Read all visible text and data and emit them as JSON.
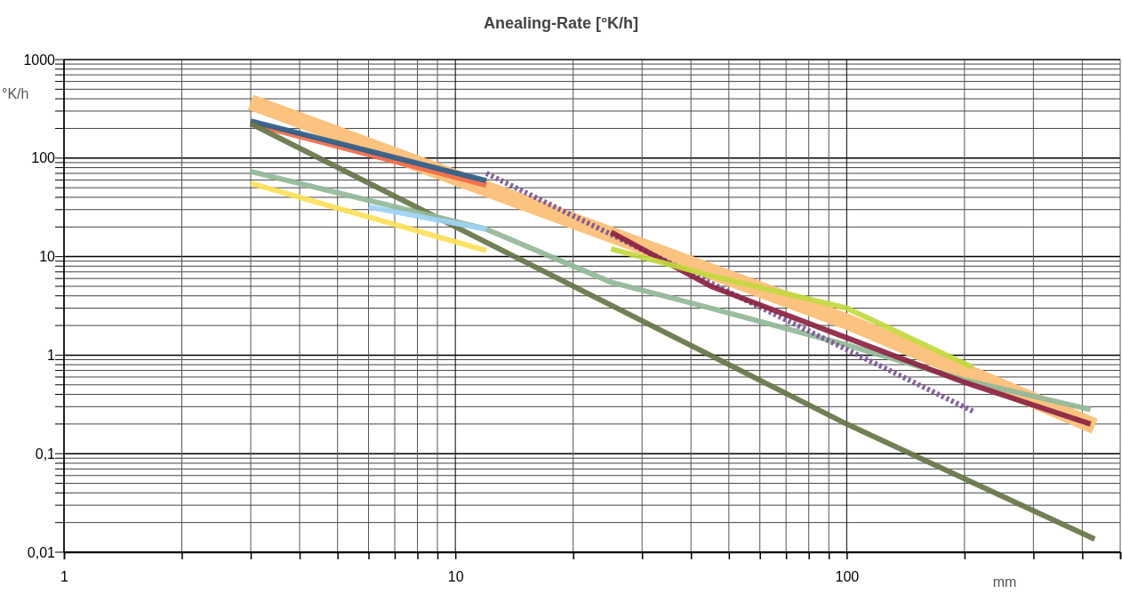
{
  "chart_data": {
    "type": "line",
    "title": "Anealing-Rate [°K/h]",
    "xlabel": "mm",
    "ylabel": "°K/h",
    "log": "xy",
    "grid": true,
    "xlim": [
      1,
      500
    ],
    "xticks": [
      1,
      {
        "value": 2,
        "label": null
      },
      {
        "value": 3,
        "label": null
      },
      {
        "value": 4,
        "label": null
      },
      {
        "value": 5,
        "label": null
      },
      {
        "value": 6,
        "label": null
      },
      {
        "value": 7,
        "label": null
      },
      {
        "value": 8,
        "label": null
      },
      {
        "value": 9,
        "label": null
      },
      10,
      {
        "value": 20,
        "label": null
      },
      {
        "value": 30,
        "label": null
      },
      {
        "value": 40,
        "label": null
      },
      {
        "value": 50,
        "label": null
      },
      {
        "value": 60,
        "label": null
      },
      {
        "value": 70,
        "label": null
      },
      {
        "value": 80,
        "label": null
      },
      {
        "value": 90,
        "label": null
      },
      100,
      {
        "value": 200,
        "label": null
      },
      {
        "value": 300,
        "label": null
      },
      {
        "value": 400,
        "label": null
      },
      {
        "value": 500,
        "label": null
      }
    ],
    "ylim": [
      0.01,
      1000
    ],
    "yticks": [
      {
        "value": 0.01,
        "label": "0,01"
      },
      {
        "value": 0.02,
        "label": null
      },
      {
        "value": 0.03,
        "label": null
      },
      {
        "value": 0.04,
        "label": null
      },
      {
        "value": 0.05,
        "label": null
      },
      {
        "value": 0.06,
        "label": null
      },
      {
        "value": 0.07,
        "label": null
      },
      {
        "value": 0.08,
        "label": null
      },
      {
        "value": 0.09,
        "label": null
      },
      {
        "value": 0.1,
        "label": "0,1"
      },
      {
        "value": 0.2,
        "label": null
      },
      {
        "value": 0.3,
        "label": null
      },
      {
        "value": 0.4,
        "label": null
      },
      {
        "value": 0.5,
        "label": null
      },
      {
        "value": 0.6,
        "label": null
      },
      {
        "value": 0.7,
        "label": null
      },
      {
        "value": 0.8,
        "label": null
      },
      {
        "value": 0.9,
        "label": null
      },
      1,
      {
        "value": 2,
        "label": null
      },
      {
        "value": 3,
        "label": null
      },
      {
        "value": 4,
        "label": null
      },
      {
        "value": 5,
        "label": null
      },
      {
        "value": 6,
        "label": null
      },
      {
        "value": 7,
        "label": null
      },
      {
        "value": 8,
        "label": null
      },
      {
        "value": 9,
        "label": null
      },
      10,
      {
        "value": 20,
        "label": null
      },
      {
        "value": 30,
        "label": null
      },
      {
        "value": 40,
        "label": null
      },
      {
        "value": 50,
        "label": null
      },
      {
        "value": 60,
        "label": null
      },
      {
        "value": 70,
        "label": null
      },
      {
        "value": 80,
        "label": null
      },
      {
        "value": 90,
        "label": null
      },
      100,
      {
        "value": 200,
        "label": null
      },
      {
        "value": 300,
        "label": null
      },
      {
        "value": 400,
        "label": null
      },
      {
        "value": 500,
        "label": null
      },
      {
        "value": 600,
        "label": null
      },
      {
        "value": 700,
        "label": null
      },
      {
        "value": 800,
        "label": null
      },
      {
        "value": 900,
        "label": null
      },
      1000
    ],
    "series": [
      {
        "color": "#fcc27f",
        "x": [
          3,
          100,
          430
        ],
        "values": [
          370,
          2.2,
          0.19
        ]
      },
      {
        "color": "#f26b4a",
        "x": [
          3,
          12
        ],
        "values": [
          224,
          53
        ]
      },
      {
        "color": "#2e5c8a",
        "x": [
          3,
          12
        ],
        "values": [
          238,
          59
        ]
      },
      {
        "color": "#667547",
        "x": [
          3,
          100,
          430
        ],
        "values": [
          224,
          0.2,
          0.0136
        ]
      },
      {
        "color": "#92b898",
        "x": [
          3,
          12,
          25,
          45,
          100,
          200,
          420
        ],
        "values": [
          73,
          19,
          5.5,
          3,
          1.27,
          0.56,
          0.28
        ]
      },
      {
        "color": "#9dd3f5",
        "x": [
          6,
          12
        ],
        "values": [
          32,
          19
        ]
      },
      {
        "color": "#fde05a",
        "x": [
          3,
          12
        ],
        "values": [
          55.6,
          11.5
        ]
      },
      {
        "color": "#7a5596",
        "line_style": "dotted",
        "x": [
          12,
          210
        ],
        "values": [
          70,
          0.27
        ]
      },
      {
        "color": "#8c2342",
        "x": [
          25,
          45,
          100,
          200,
          420
        ],
        "values": [
          17.7,
          5,
          1.5,
          0.53,
          0.2
        ]
      },
      {
        "color": "#c3d93e",
        "x": [
          25,
          45,
          100,
          210
        ],
        "values": [
          12,
          6.4,
          3,
          0.75
        ]
      }
    ]
  }
}
